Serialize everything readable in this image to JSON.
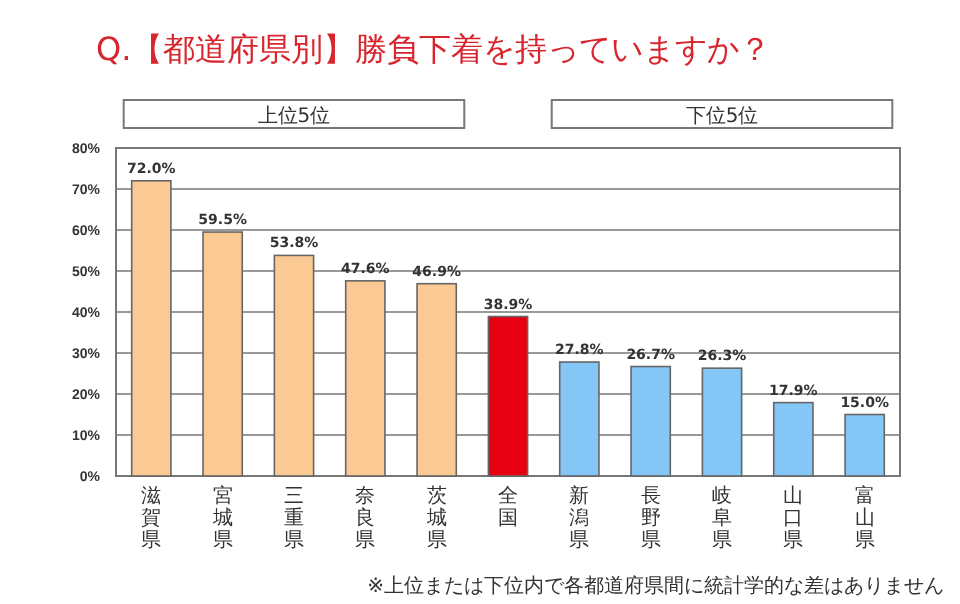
{
  "chart_data": {
    "type": "bar",
    "title": "Q.【都道府県別】勝負下着を持っていますか？",
    "categories": [
      "滋賀県",
      "宮城県",
      "三重県",
      "奈良県",
      "茨城県",
      "全国",
      "新潟県",
      "長野県",
      "岐阜県",
      "山口県",
      "富山県"
    ],
    "values": [
      72.0,
      59.5,
      53.8,
      47.6,
      46.9,
      38.9,
      27.8,
      26.7,
      26.3,
      17.9,
      15.0
    ],
    "value_labels": [
      "72.0%",
      "59.5%",
      "53.8%",
      "47.6%",
      "46.9%",
      "38.9%",
      "27.8%",
      "26.7%",
      "26.3%",
      "17.9%",
      "15.0%"
    ],
    "colors": [
      "#fbc994",
      "#fbc994",
      "#fbc994",
      "#fbc994",
      "#fbc994",
      "#e60012",
      "#84c6f6",
      "#84c6f6",
      "#84c6f6",
      "#84c6f6",
      "#84c6f6"
    ],
    "ylim": [
      0,
      80
    ],
    "yticks": [
      {
        "value": 0,
        "label": "0%"
      },
      {
        "value": 10,
        "label": "10%"
      },
      {
        "value": 20,
        "label": "20%"
      },
      {
        "value": 30,
        "label": "30%"
      },
      {
        "value": 40,
        "label": "40%"
      },
      {
        "value": 50,
        "label": "50%"
      },
      {
        "value": 60,
        "label": "60%"
      },
      {
        "value": 70,
        "label": "70%"
      },
      {
        "value": 80,
        "label": "80%"
      }
    ],
    "grid": "y",
    "annotations": [
      "上位5位",
      "下位5位",
      "※上位または下位内で各都道府県間に統計学的な差はありません"
    ]
  }
}
